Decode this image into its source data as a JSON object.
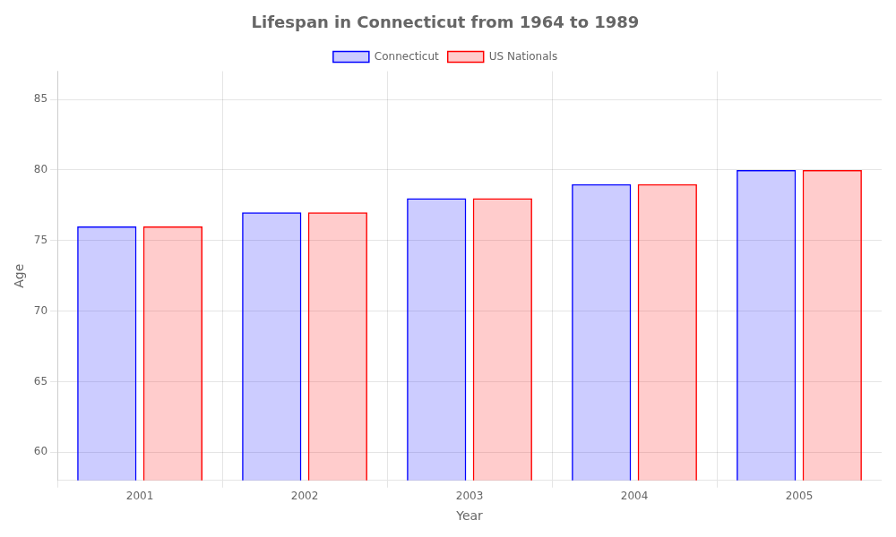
{
  "chart_data": {
    "type": "bar",
    "title": "Lifespan in Connecticut from 1964 to 1989",
    "xlabel": "Year",
    "ylabel": "Age",
    "categories": [
      "2001",
      "2002",
      "2003",
      "2004",
      "2005"
    ],
    "series": [
      {
        "name": "Connecticut",
        "color": "#0000ff",
        "values": [
          76,
          77,
          78,
          79,
          80
        ]
      },
      {
        "name": "US Nationals",
        "color": "#ff0000",
        "values": [
          76,
          77,
          78,
          79,
          80
        ]
      }
    ],
    "ylim": [
      58,
      87
    ],
    "yticks": [
      60,
      65,
      70,
      75,
      80,
      85
    ],
    "grid": true,
    "legend": "top"
  }
}
